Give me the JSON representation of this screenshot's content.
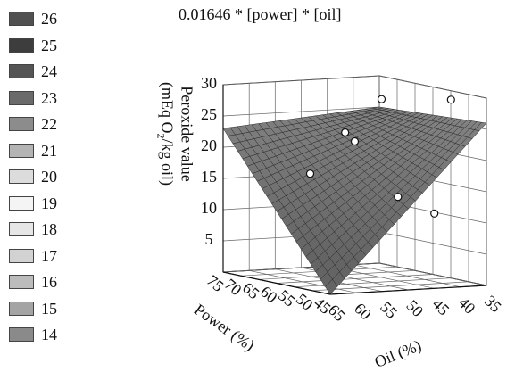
{
  "chart_data": {
    "type": "surface",
    "title": "0.01646 * [power] * [oil]",
    "zlabel_line1": "Peroxide value",
    "zlabel_line2": "(mEq O",
    "zlabel_sub": "2",
    "zlabel_line2_end": "/kg oil)",
    "xlabel": "Oil (%)",
    "ylabel": "Power (%)",
    "x_ticks": [
      35,
      40,
      45,
      50,
      55,
      60,
      65
    ],
    "y_ticks": [
      45,
      50,
      55,
      60,
      65,
      70,
      75
    ],
    "z_ticks": [
      5,
      10,
      15,
      20,
      25,
      30
    ],
    "xlim": [
      35,
      65
    ],
    "ylim": [
      45,
      75
    ],
    "zlim": [
      0,
      30
    ],
    "surface_corners": {
      "oil35_power45": 26,
      "oil35_power75": 25,
      "oil65_power45": 0,
      "oil65_power75": 23
    },
    "observed_points": [
      {
        "oil": 37,
        "power": 52,
        "value": 29
      },
      {
        "oil": 38,
        "power": 70,
        "value": 27
      },
      {
        "oil": 50,
        "power": 60,
        "value": 22
      },
      {
        "oil": 45,
        "power": 70,
        "value": 22
      },
      {
        "oil": 52,
        "power": 45,
        "value": 15
      },
      {
        "oil": 62,
        "power": 55,
        "value": 18
      },
      {
        "oil": 45,
        "power": 45,
        "value": 12
      }
    ],
    "legend": {
      "entries": [
        "26",
        "25",
        "24",
        "23",
        "22",
        "21",
        "20",
        "19",
        "18",
        "17",
        "16",
        "15",
        "14"
      ],
      "colors": [
        "#505050",
        "#3d3d3d",
        "#555555",
        "#6a6a6a",
        "#8c8c8c",
        "#b4b4b4",
        "#dcdcdc",
        "#f4f4f4",
        "#e6e6e6",
        "#d2d2d2",
        "#bcbcbc",
        "#a4a4a4",
        "#8a8a8a"
      ]
    }
  }
}
